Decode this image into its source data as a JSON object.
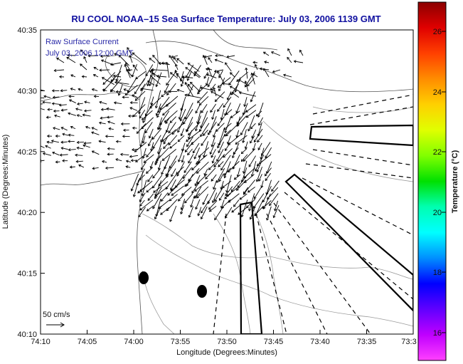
{
  "title": "RU COOL  NOAA–15  Sea Surface Temperature:  July 03, 2006 1139 GMT",
  "overlay": {
    "line1": "Raw Surface Current",
    "line2": "July 03, 2006 12:00 GMT"
  },
  "axes": {
    "xlabel": "Longitude (Degrees:Minutes)",
    "ylabel": "Latitude (Degrees:Minutes)",
    "x_ticks": [
      "74:10",
      "74:05",
      "74:00",
      "73:55",
      "73:50",
      "73:45",
      "73:40",
      "73:35",
      "73:3"
    ],
    "y_ticks": [
      "40:35",
      "40:30",
      "40:25",
      "40:20",
      "40:15",
      "40:10"
    ]
  },
  "scale": {
    "label": "50 cm/s"
  },
  "colorbar": {
    "label": "Temperature (°C)",
    "ticks": [
      "26",
      "24",
      "22",
      "20",
      "18",
      "16"
    ],
    "colors": [
      "#8b0000",
      "#e00000",
      "#ff4000",
      "#ff8c00",
      "#ffd000",
      "#e0ff00",
      "#80ff00",
      "#00e000",
      "#00ffb0",
      "#00ffff",
      "#0090ff",
      "#0000ff",
      "#6000ff",
      "#c000ff",
      "#ff40ff"
    ]
  },
  "map_features": {
    "buoys": 2,
    "transect_boxes": 3
  }
}
